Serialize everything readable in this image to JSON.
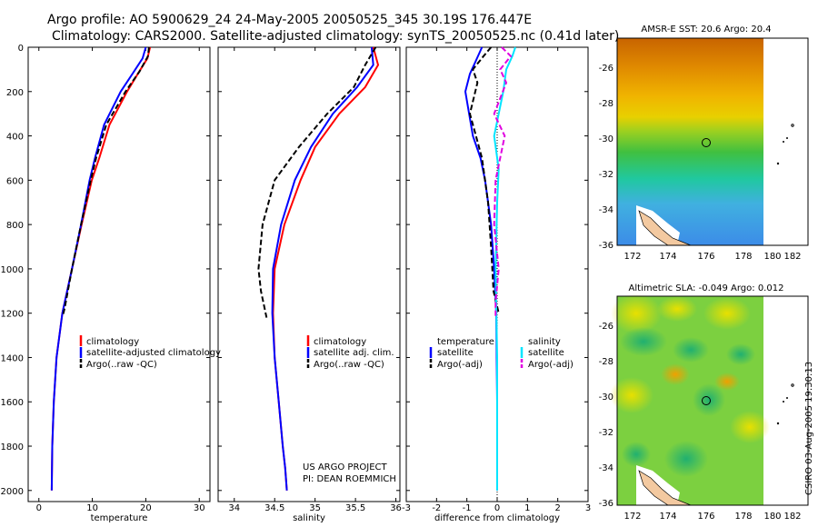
{
  "title": {
    "line1": "Argo profile: AO 5900629_24 24-May-2005 20050525_345 30.19S 176.447E",
    "line2": "Climatology: CARS2000. Satellite-adjusted climatology: synTS_20050525.nc (0.41d later)"
  },
  "colors": {
    "climatology": "#ff0000",
    "satellite": "#0000ff",
    "argo": "#000000",
    "cyan": "#00e5ff",
    "magenta": "#e000e0"
  },
  "panels": {
    "temperature": {
      "xlabel": "temperature",
      "xticks": [
        "0",
        "10",
        "20",
        "30"
      ],
      "legend": [
        "climatology",
        "satellite-adjusted climatology",
        "Argo(..raw -QC)"
      ]
    },
    "salinity": {
      "xlabel": "salinity",
      "xticks": [
        "34",
        "34.5",
        "35",
        "35.5",
        "36"
      ],
      "legend": [
        "climatology",
        "satellite adj. clim.",
        "Argo(..raw -QC)"
      ],
      "note1": "US ARGO PROJECT",
      "note2": "PI: DEAN ROEMMICH"
    },
    "difference": {
      "xlabel": "difference from climatology",
      "xticks": [
        "-3",
        "-2",
        "-1",
        "0",
        "1",
        "2",
        "3"
      ],
      "legend_left_head": "temperature",
      "legend_left": [
        "satellite",
        "Argo(-adj)"
      ],
      "legend_right_head": "salinity",
      "legend_right": [
        "satellite",
        "Argo(-adj)"
      ]
    },
    "depth_ticks": [
      "0",
      "200",
      "400",
      "600",
      "800",
      "1000",
      "1200",
      "1400",
      "1600",
      "1800",
      "2000"
    ]
  },
  "maps": {
    "sst_title": "AMSR-E SST: 20.6 Argo: 20.4",
    "sla_title": "Altimetric SLA: -0.049 Argo: 0.012",
    "lon_ticks": [
      "172",
      "174",
      "176",
      "178",
      "180",
      "182"
    ],
    "lat_ticks": [
      "-26",
      "-28",
      "-30",
      "-32",
      "-34",
      "-36"
    ]
  },
  "footer": "CSIRO 03-Aug-2005 19:30:13",
  "chart_data": [
    {
      "type": "line",
      "xlabel": "temperature",
      "xlim": [
        -2,
        32
      ],
      "ylim": [
        2050,
        0
      ],
      "series": [
        {
          "name": "climatology",
          "color": "#ff0000",
          "x": [
            20.8,
            20.3,
            18.5,
            16.5,
            13.2,
            11.3,
            9.9,
            8.0,
            6.2,
            4.4,
            3.3,
            2.8,
            2.5,
            2.4
          ],
          "y": [
            0,
            50,
            120,
            200,
            350,
            500,
            600,
            800,
            1000,
            1200,
            1400,
            1600,
            1800,
            2000
          ]
        },
        {
          "name": "satellite-adjusted climatology",
          "color": "#0000ff",
          "x": [
            20.0,
            19.4,
            17.5,
            15.3,
            12.2,
            10.5,
            9.5,
            7.9,
            6.2,
            4.4,
            3.3,
            2.8,
            2.5,
            2.4
          ],
          "y": [
            0,
            50,
            120,
            200,
            350,
            500,
            600,
            800,
            1000,
            1200,
            1400,
            1600,
            1800,
            2000
          ]
        },
        {
          "name": "Argo(..raw -QC)",
          "color": "#000000",
          "x": [
            20.6,
            20.4,
            18.8,
            16.2,
            12.6,
            10.7,
            9.7,
            7.9,
            6.2,
            4.8,
            4.5
          ],
          "y": [
            0,
            40,
            110,
            200,
            350,
            500,
            600,
            800,
            1000,
            1180,
            1210
          ]
        }
      ]
    },
    {
      "type": "line",
      "xlabel": "salinity",
      "xlim": [
        33.8,
        36.05
      ],
      "ylim": [
        2050,
        0
      ],
      "series": [
        {
          "name": "climatology",
          "color": "#ff0000",
          "x": [
            35.72,
            35.78,
            35.62,
            35.3,
            35.0,
            34.82,
            34.62,
            34.5,
            34.48,
            34.5,
            34.55,
            34.6,
            34.63,
            34.65
          ],
          "y": [
            0,
            80,
            180,
            300,
            450,
            600,
            800,
            1000,
            1200,
            1400,
            1600,
            1800,
            1900,
            2000
          ]
        },
        {
          "name": "satellite adj. clim.",
          "color": "#0000ff",
          "x": [
            35.7,
            35.72,
            35.52,
            35.22,
            34.95,
            34.75,
            34.58,
            34.48,
            34.47,
            34.5,
            34.55,
            34.6,
            34.63,
            34.65
          ],
          "y": [
            0,
            80,
            180,
            300,
            450,
            600,
            800,
            1000,
            1200,
            1400,
            1600,
            1800,
            1900,
            2000
          ]
        },
        {
          "name": "Argo(..raw -QC)",
          "color": "#000000",
          "x": [
            35.75,
            35.62,
            35.48,
            35.15,
            34.8,
            34.5,
            34.35,
            34.3,
            34.33,
            34.4
          ],
          "y": [
            0,
            80,
            180,
            300,
            450,
            600,
            800,
            1000,
            1100,
            1220
          ]
        }
      ]
    },
    {
      "type": "line",
      "xlabel": "difference from climatology",
      "xlim": [
        -3,
        3
      ],
      "ylim": [
        2050,
        0
      ],
      "series": [
        {
          "name": "temperature satellite",
          "color": "#0000ff",
          "x": [
            -0.5,
            -0.7,
            -0.9,
            -1.05,
            -0.8,
            -0.55,
            -0.4,
            -0.2,
            -0.1,
            -0.03,
            0,
            0
          ],
          "y": [
            0,
            60,
            120,
            200,
            400,
            500,
            600,
            800,
            1000,
            1200,
            1600,
            2000
          ]
        },
        {
          "name": "temperature Argo(-adj)",
          "color": "#000000",
          "x": [
            -0.2,
            -0.45,
            -0.8,
            -0.65,
            -0.9,
            -0.7,
            -0.5,
            -0.3,
            -0.2,
            -0.12,
            0.05
          ],
          "y": [
            0,
            40,
            100,
            160,
            300,
            400,
            500,
            700,
            900,
            1100,
            1200
          ]
        },
        {
          "name": "salinity satellite",
          "color": "#00e5ff",
          "x": [
            0.6,
            0.5,
            0.3,
            0.2,
            -0.1,
            0.05,
            0.0,
            -0.05,
            0,
            0,
            0
          ],
          "y": [
            0,
            40,
            100,
            200,
            400,
            550,
            700,
            1000,
            1400,
            1800,
            2000
          ]
        },
        {
          "name": "salinity Argo(-adj)",
          "color": "#e000e0",
          "x": [
            0.15,
            0.45,
            0.1,
            0.3,
            -0.1,
            0.25,
            -0.05,
            -0.1,
            0.05,
            -0.05,
            -0.05
          ],
          "y": [
            0,
            40,
            100,
            160,
            300,
            400,
            600,
            800,
            1000,
            1150,
            1220
          ]
        }
      ]
    }
  ]
}
